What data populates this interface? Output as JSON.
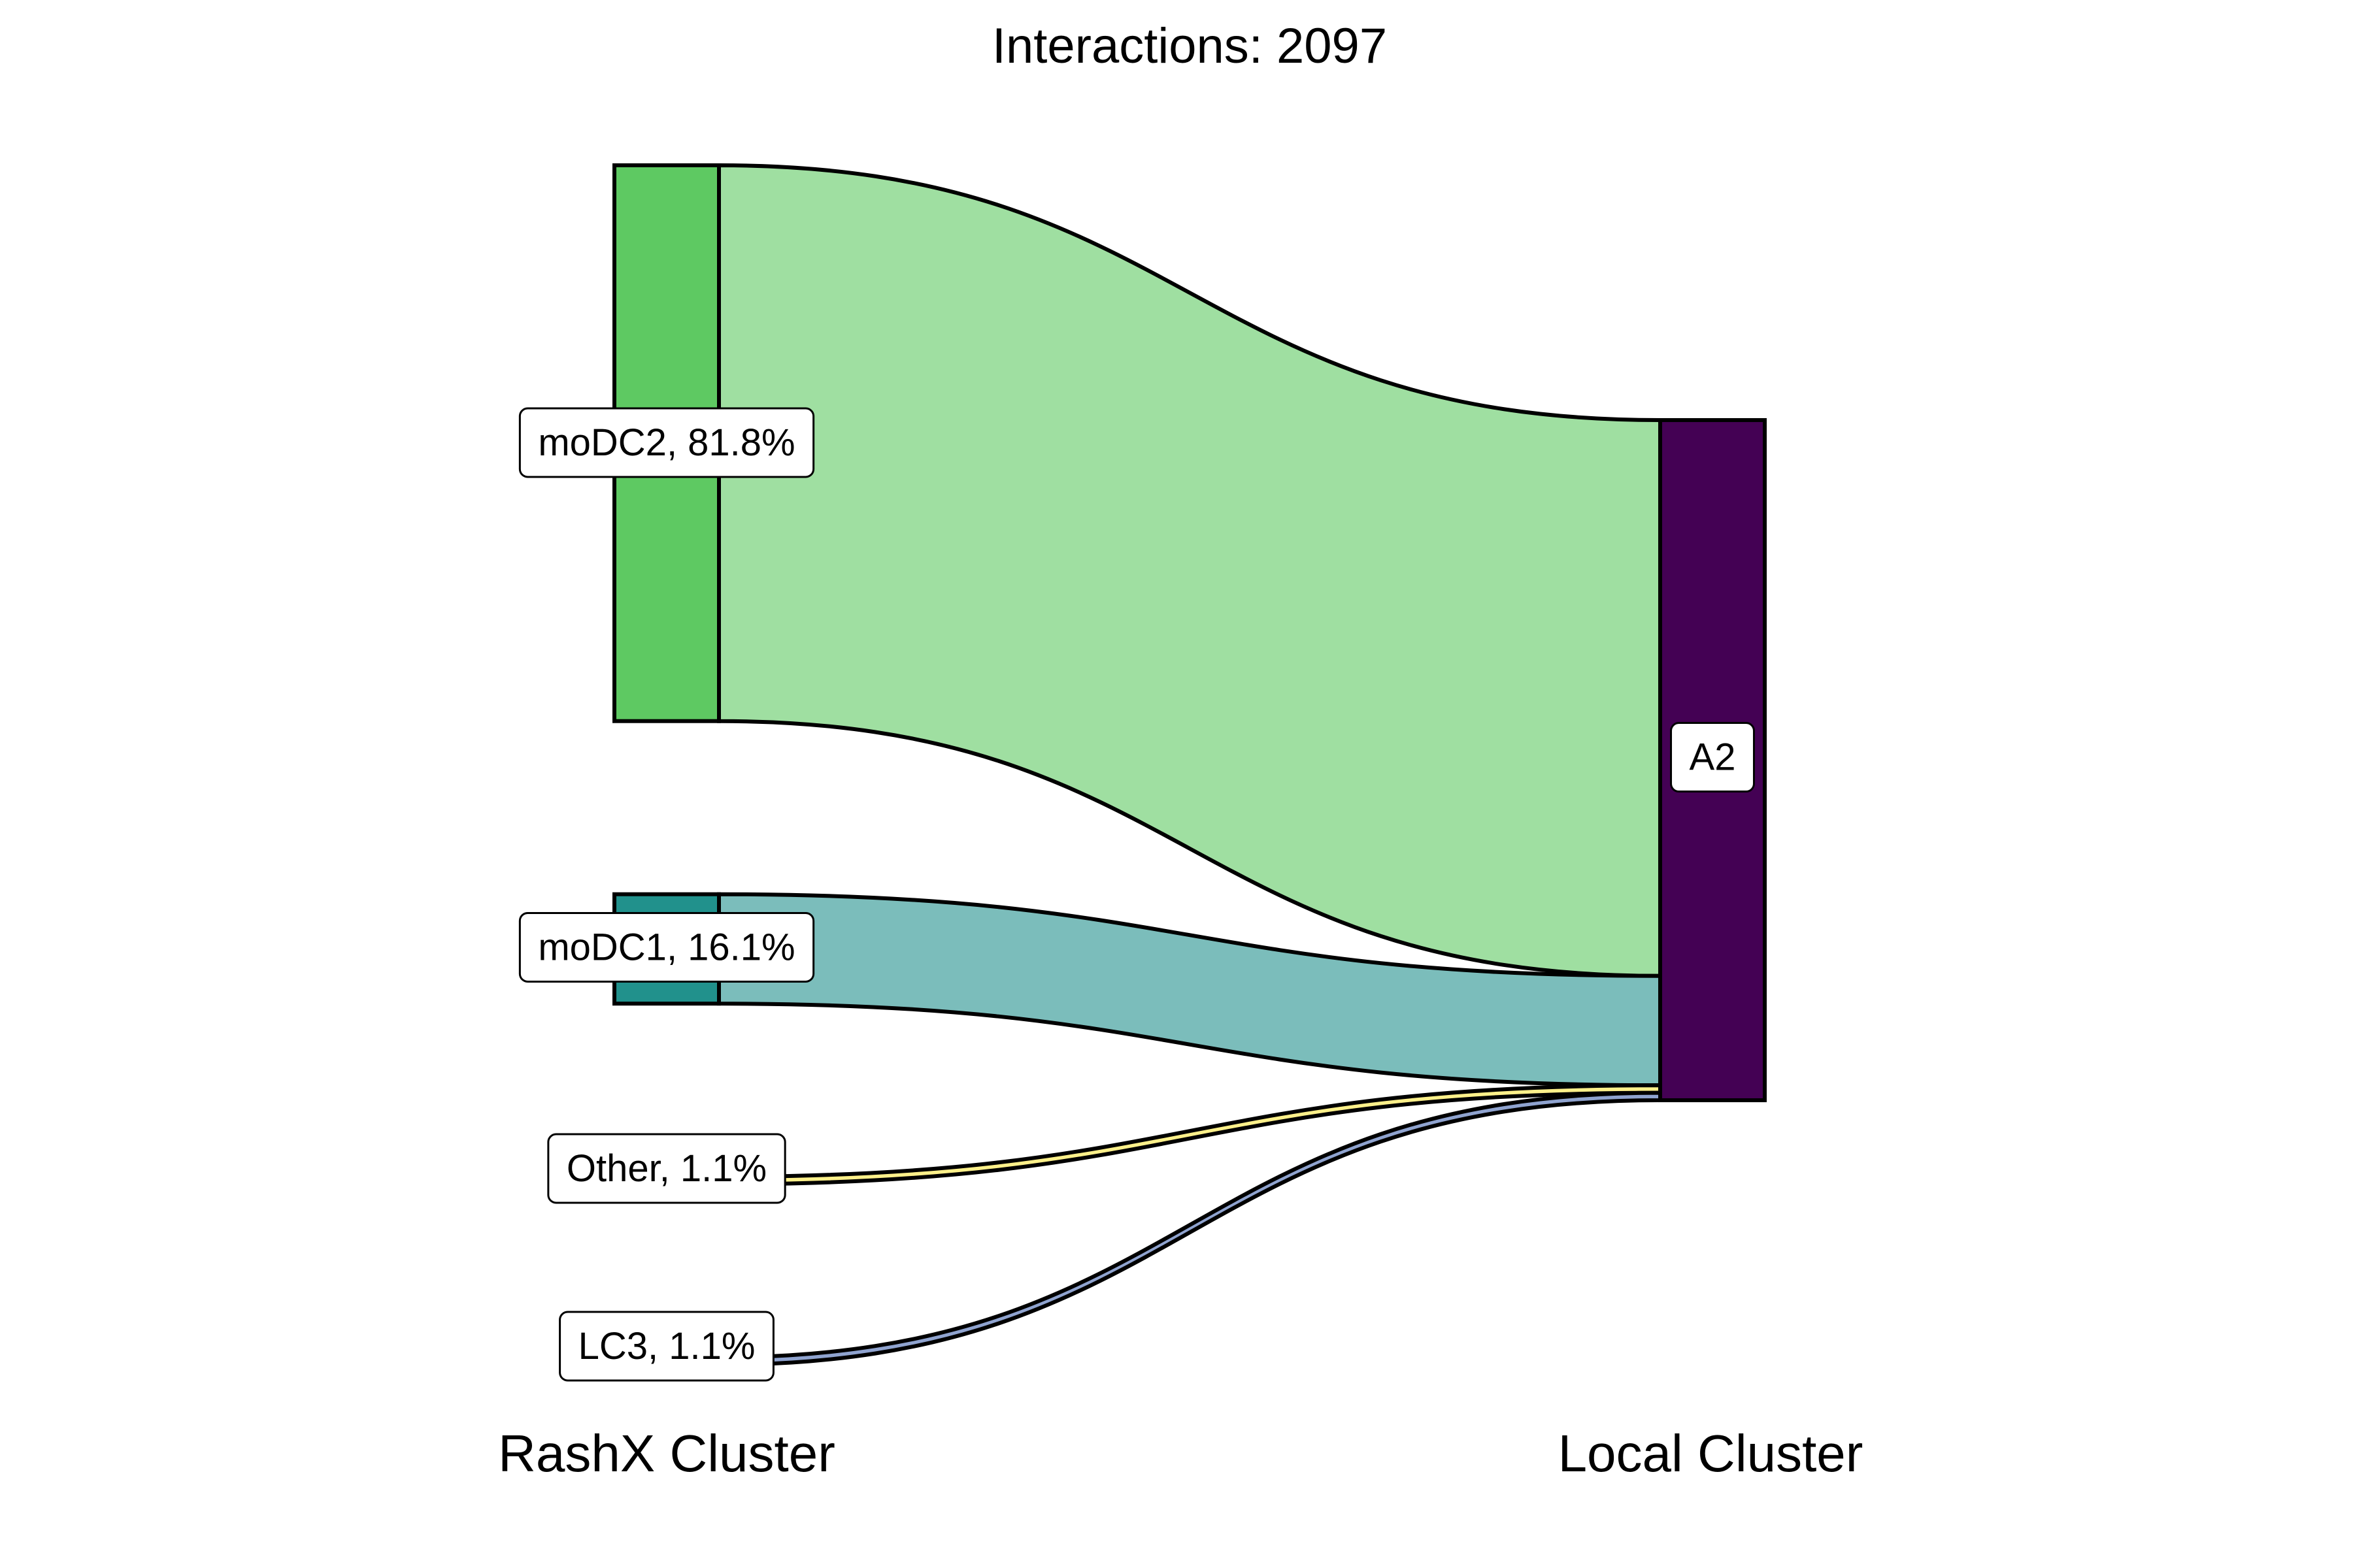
{
  "chart_data": {
    "type": "sankey",
    "title": "Interactions: 2097",
    "axis_labels": [
      "RashX Cluster",
      "Local Cluster"
    ],
    "sources": [
      {
        "name": "moDC2",
        "percent": 81.8,
        "label": "moDC2, 81.8%",
        "node_color": "#5ec962",
        "flow_color": "#9fdfa1"
      },
      {
        "name": "moDC1",
        "percent": 16.1,
        "label": "moDC1, 16.1%",
        "node_color": "#21918c",
        "flow_color": "#7bbdbb"
      },
      {
        "name": "Other",
        "percent": 1.1,
        "label": "Other, 1.1%",
        "node_color": "#fde725",
        "flow_color": "#fdf08a"
      },
      {
        "name": "LC3",
        "percent": 1.1,
        "label": "LC3, 1.1%",
        "node_color": "#3b528b",
        "flow_color": "#8fa3cf"
      }
    ],
    "targets": [
      {
        "name": "A2",
        "label": "A2",
        "node_color": "#440154"
      }
    ],
    "links": [
      {
        "source": "moDC2",
        "target": "A2",
        "percent": 81.8
      },
      {
        "source": "moDC1",
        "target": "A2",
        "percent": 16.1
      },
      {
        "source": "Other",
        "target": "A2",
        "percent": 1.1
      },
      {
        "source": "LC3",
        "target": "A2",
        "percent": 1.1
      }
    ]
  }
}
